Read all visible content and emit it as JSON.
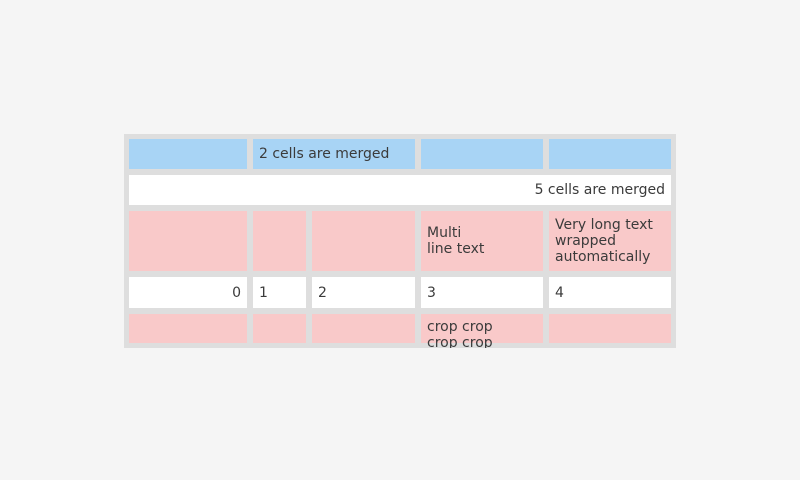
{
  "page": {
    "background": "#f5f5f5"
  },
  "table": {
    "widget": "table",
    "background": "#dedede",
    "text_color": "#3b3b3b",
    "cell_colors": {
      "header_blue": "#a8d4f5",
      "white": "#ffffff",
      "pink": "#f9c9c9"
    },
    "rows": [
      {
        "kind": "blue-header",
        "cells": [
          {
            "text": ""
          },
          {
            "text": "2 cells are merged",
            "colspan": 2
          },
          {
            "text": ""
          },
          {
            "text": ""
          }
        ]
      },
      {
        "kind": "full-merged",
        "cells": [
          {
            "text": "5 cells are merged",
            "colspan": 5,
            "align": "right"
          }
        ]
      },
      {
        "kind": "pink-multiline",
        "cells": [
          {
            "text": ""
          },
          {
            "text": ""
          },
          {
            "text": ""
          },
          {
            "text": "Multi\nline text"
          },
          {
            "text": "Very long text wrapped automatically"
          }
        ]
      },
      {
        "kind": "numbers",
        "cells": [
          {
            "text": "0",
            "align": "right"
          },
          {
            "text": "1"
          },
          {
            "text": "2"
          },
          {
            "text": "3"
          },
          {
            "text": "4"
          }
        ]
      },
      {
        "kind": "pink-cropped",
        "cells": [
          {
            "text": ""
          },
          {
            "text": ""
          },
          {
            "text": ""
          },
          {
            "text": "crop crop\ncrop crop"
          },
          {
            "text": ""
          }
        ]
      }
    ]
  }
}
